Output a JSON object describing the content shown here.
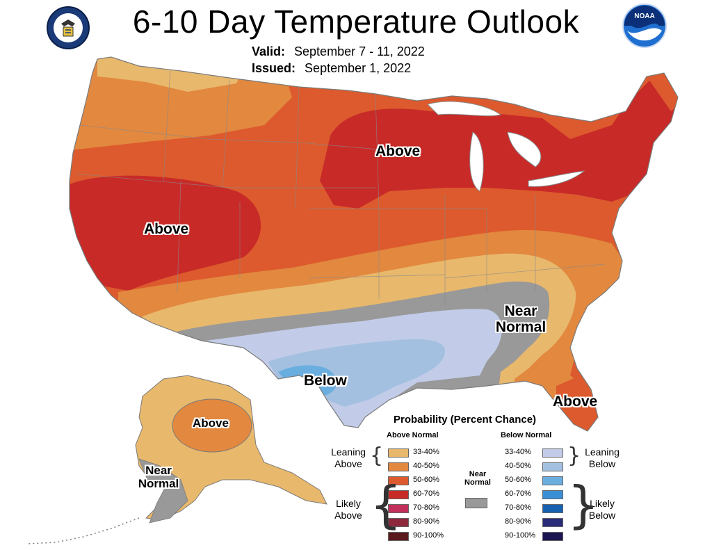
{
  "title": "6-10 Day Temperature Outlook",
  "valid_label": "Valid:",
  "valid_value": "September 7 - 11, 2022",
  "issued_label": "Issued:",
  "issued_value": "September 1, 2022",
  "logos": {
    "left": "commerce-seal",
    "right": "noaa-logo",
    "noaa_text": "NOAA"
  },
  "labels": {
    "above_midwest": "Above",
    "above_west": "Above",
    "above_alaska": "Above",
    "above_florida": "Above",
    "below_texas": "Below",
    "near_normal_se_1": "Near",
    "near_normal_se_2": "Normal",
    "near_normal_ak_1": "Near",
    "near_normal_ak_2": "Normal"
  },
  "legend": {
    "title": "Probability (Percent Chance)",
    "above_header": "Above Normal",
    "below_header": "Below Normal",
    "near_header_1": "Near",
    "near_header_2": "Normal",
    "leaning_above_1": "Leaning",
    "leaning_above_2": "Above",
    "likely_above_1": "Likely",
    "likely_above_2": "Above",
    "leaning_below_1": "Leaning",
    "leaning_below_2": "Below",
    "likely_below_1": "Likely",
    "likely_below_2": "Below",
    "above_bins": [
      "33-40%",
      "40-50%",
      "50-60%",
      "60-70%",
      "70-80%",
      "80-90%",
      "90-100%"
    ],
    "below_bins": [
      "33-40%",
      "40-50%",
      "50-60%",
      "60-70%",
      "70-80%",
      "80-90%",
      "90-100%"
    ],
    "above_colors": [
      "#e8b86c",
      "#e2883f",
      "#dc5a2d",
      "#c82a28",
      "#c0305a",
      "#8c2a3c",
      "#5a1a1e"
    ],
    "below_colors": [
      "#c2cce8",
      "#a4c0e0",
      "#6aaee0",
      "#3a90d6",
      "#1662b0",
      "#2a2c7a",
      "#1c1650"
    ],
    "near_color": "#999999"
  }
}
